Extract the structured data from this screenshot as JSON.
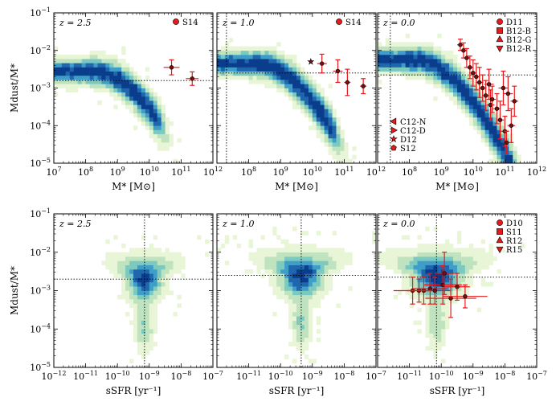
{
  "chart_data": {
    "type": "heatmap",
    "title": "",
    "colors": {
      "red": "#e41a1c",
      "dark": "#7a0e0e",
      "ramp": [
        "#e8f5d6",
        "#bfe3bf",
        "#7cc9c0",
        "#3f9ec8",
        "#2066ad",
        "#0a3d8c"
      ]
    },
    "rows": [
      {
        "xlabel": "M* [M⊙]",
        "ylabel": "Mdust/M*",
        "xscale": "log",
        "yscale": "log",
        "xlim": [
          7,
          12
        ],
        "ylim": [
          -5,
          -1
        ],
        "x_ticks": [
          "10^7",
          "10^8",
          "10^9",
          "10^10",
          "10^11",
          "10^12"
        ],
        "y_ticks": [
          "10^-5",
          "10^-4",
          "10^-3",
          "10^-2",
          "10^-1"
        ],
        "panels": [
          {
            "label": "z = 2.5",
            "ref_lines": {
              "vline": null,
              "hline": -2.8
            },
            "legend": [
              {
                "marker": "circle",
                "label": "S14"
              }
            ],
            "obs_points": [
              {
                "x": 10.7,
                "y": -2.45,
                "xerr": 0.25,
                "yerr": 0.2
              },
              {
                "x": 11.35,
                "y": -2.75,
                "xerr": 0.2,
                "yerr": 0.18
              }
            ]
          },
          {
            "label": "z = 1.0",
            "ref_lines": {
              "vline": 7.3,
              "hline": -2.6
            },
            "legend": [
              {
                "marker": "circle",
                "label": "S14"
              }
            ],
            "obs_points": [
              {
                "x": 9.95,
                "y": -2.3,
                "xerr": 0.0,
                "yerr": 0.0,
                "marker": "star"
              },
              {
                "x": 10.3,
                "y": -2.35,
                "xerr": 0.15,
                "yerr": 0.25
              },
              {
                "x": 10.8,
                "y": -2.55,
                "xerr": 0.15,
                "yerr": 0.3
              },
              {
                "x": 11.1,
                "y": -2.85,
                "xerr": 0.1,
                "yerr": 0.35
              },
              {
                "x": 11.6,
                "y": -2.95,
                "xerr": 0.1,
                "yerr": 0.2
              }
            ]
          },
          {
            "label": "z = 0.0",
            "ref_lines": {
              "vline": 7.4,
              "hline": -2.65
            },
            "legend": [
              {
                "marker": "circle",
                "label": "D11"
              },
              {
                "marker": "square",
                "label": "B12-B"
              },
              {
                "marker": "triangle-up",
                "label": "B12-G"
              },
              {
                "marker": "triangle-down",
                "label": "B12-R"
              }
            ],
            "legend2": [
              {
                "marker": "triangle-left",
                "label": "C12-N"
              },
              {
                "marker": "triangle-right",
                "label": "C12-D"
              },
              {
                "marker": "star",
                "label": "D12"
              },
              {
                "marker": "pentagon",
                "label": "S12"
              }
            ],
            "obs_points": [
              {
                "x": 9.6,
                "y": -1.85,
                "xerr": 0.1,
                "yerr": 0.15
              },
              {
                "x": 9.7,
                "y": -2.0,
                "xerr": 0.1,
                "yerr": 0.2
              },
              {
                "x": 9.8,
                "y": -2.2,
                "xerr": 0.1,
                "yerr": 0.25
              },
              {
                "x": 9.9,
                "y": -2.45,
                "xerr": 0.1,
                "yerr": 0.3
              },
              {
                "x": 10.0,
                "y": -2.6,
                "xerr": 0.12,
                "yerr": 0.35
              },
              {
                "x": 10.1,
                "y": -2.7,
                "xerr": 0.12,
                "yerr": 0.35
              },
              {
                "x": 10.2,
                "y": -2.85,
                "xerr": 0.12,
                "yerr": 0.4
              },
              {
                "x": 10.3,
                "y": -3.0,
                "xerr": 0.12,
                "yerr": 0.35
              },
              {
                "x": 10.4,
                "y": -3.2,
                "xerr": 0.12,
                "yerr": 0.4
              },
              {
                "x": 10.5,
                "y": -2.9,
                "xerr": 0.15,
                "yerr": 0.4
              },
              {
                "x": 10.55,
                "y": -3.45,
                "xerr": 0.12,
                "yerr": 0.4
              },
              {
                "x": 10.6,
                "y": -3.3,
                "xerr": 0.12,
                "yerr": 0.35
              },
              {
                "x": 10.75,
                "y": -3.55,
                "xerr": 0.12,
                "yerr": 0.4
              },
              {
                "x": 10.85,
                "y": -3.85,
                "xerr": 0.12,
                "yerr": 0.5
              },
              {
                "x": 10.95,
                "y": -3.0,
                "xerr": 0.15,
                "yerr": 0.45
              },
              {
                "x": 11.0,
                "y": -4.15,
                "xerr": 0.12,
                "yerr": 0.4
              },
              {
                "x": 11.05,
                "y": -4.45,
                "xerr": 0.12,
                "yerr": 0.3
              },
              {
                "x": 11.1,
                "y": -3.15,
                "xerr": 0.15,
                "yerr": 0.45
              },
              {
                "x": 11.2,
                "y": -4.0,
                "xerr": 0.12,
                "yerr": 0.45
              },
              {
                "x": 11.3,
                "y": -3.35,
                "xerr": 0.12,
                "yerr": 0.4
              }
            ]
          }
        ]
      },
      {
        "xlabel": "sSFR [yr⁻¹]",
        "ylabel": "Mdust/M*",
        "xscale": "log",
        "yscale": "log",
        "xlim": [
          -12,
          -7
        ],
        "ylim": [
          -5,
          -1
        ],
        "x_ticks": [
          "10^-12",
          "10^-11",
          "10^-10",
          "10^-9",
          "10^-8",
          "10^-7"
        ],
        "y_ticks": [
          "10^-5",
          "10^-4",
          "10^-3",
          "10^-2",
          "10^-1"
        ],
        "panels": [
          {
            "label": "z = 2.5",
            "ref_lines": {
              "vline": -9.15,
              "hline": -2.7
            },
            "legend": [],
            "obs_points": []
          },
          {
            "label": "z = 1.0",
            "ref_lines": {
              "vline": -9.35,
              "hline": -2.6
            },
            "legend": [],
            "obs_points": []
          },
          {
            "label": "z = 0.0",
            "ref_lines": {
              "vline": -10.15,
              "hline": -2.65
            },
            "legend": [
              {
                "marker": "circle",
                "label": "D10"
              },
              {
                "marker": "square",
                "label": "S11"
              },
              {
                "marker": "triangle-up",
                "label": "R12"
              },
              {
                "marker": "triangle-down",
                "label": "R15"
              }
            ],
            "obs_points": [
              {
                "x": -10.9,
                "y": -3.0,
                "xerr": 0.6,
                "yerr": 0.35
              },
              {
                "x": -10.7,
                "y": -3.0,
                "xerr": 0.4,
                "yerr": 0.3
              },
              {
                "x": -10.55,
                "y": -3.0,
                "xerr": 0.5,
                "yerr": 0.35
              },
              {
                "x": -10.35,
                "y": -2.95,
                "xerr": 0.55,
                "yerr": 0.4
              },
              {
                "x": -10.2,
                "y": -3.0,
                "xerr": 0.5,
                "yerr": 0.35
              },
              {
                "x": -9.95,
                "y": -2.85,
                "xerr": 0.6,
                "yerr": 0.5
              },
              {
                "x": -9.9,
                "y": -2.55,
                "xerr": 0.3,
                "yerr": 0.55
              },
              {
                "x": -9.7,
                "y": -3.2,
                "xerr": 0.8,
                "yerr": 0.5
              },
              {
                "x": -9.5,
                "y": -2.9,
                "xerr": 0.4,
                "yerr": 0.35
              },
              {
                "x": -9.25,
                "y": -3.15,
                "xerr": 0.7,
                "yerr": 0.3
              }
            ]
          }
        ]
      }
    ]
  }
}
